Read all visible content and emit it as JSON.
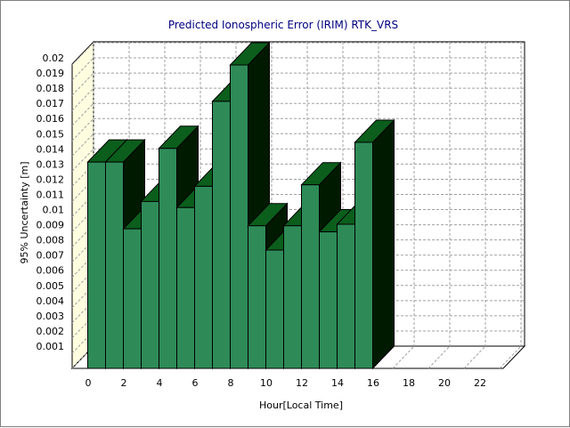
{
  "chart_data": {
    "type": "bar",
    "title": "Predicted Ionospheric Error (IRIM) RTK_VRS",
    "xlabel": "Hour[Local Time]",
    "ylabel": "95% Uncertainty [m]",
    "x": [
      0,
      1,
      2,
      3,
      4,
      5,
      6,
      7,
      8,
      9,
      10,
      11,
      12,
      13,
      14,
      15,
      16,
      17,
      18,
      19,
      20,
      21,
      22,
      23
    ],
    "values": [
      0.0136,
      0.0136,
      0.0092,
      0.011,
      0.0145,
      0.0106,
      0.012,
      0.0176,
      0.02,
      0.0094,
      0.0078,
      0.0094,
      0.0121,
      0.009,
      0.0095,
      0.0149,
      null,
      null,
      null,
      null,
      null,
      null,
      null,
      null
    ],
    "x_ticks": [
      "0",
      "2",
      "4",
      "6",
      "8",
      "10",
      "12",
      "14",
      "16",
      "18",
      "20",
      "22"
    ],
    "y_ticks": [
      "0.001",
      "0.002",
      "0.003",
      "0.004",
      "0.005",
      "0.006",
      "0.007",
      "0.008",
      "0.009",
      "0.01",
      "0.011",
      "0.012",
      "0.013",
      "0.014",
      "0.015",
      "0.016",
      "0.017",
      "0.018",
      "0.019",
      "0.02"
    ],
    "ylim": [
      0,
      0.021
    ],
    "grid": true,
    "bar_color": "#2e8b57",
    "bar_top_color": "#0b5e1c",
    "bar_side_color": "#001a00",
    "back_wall_color": "#fffde0"
  }
}
